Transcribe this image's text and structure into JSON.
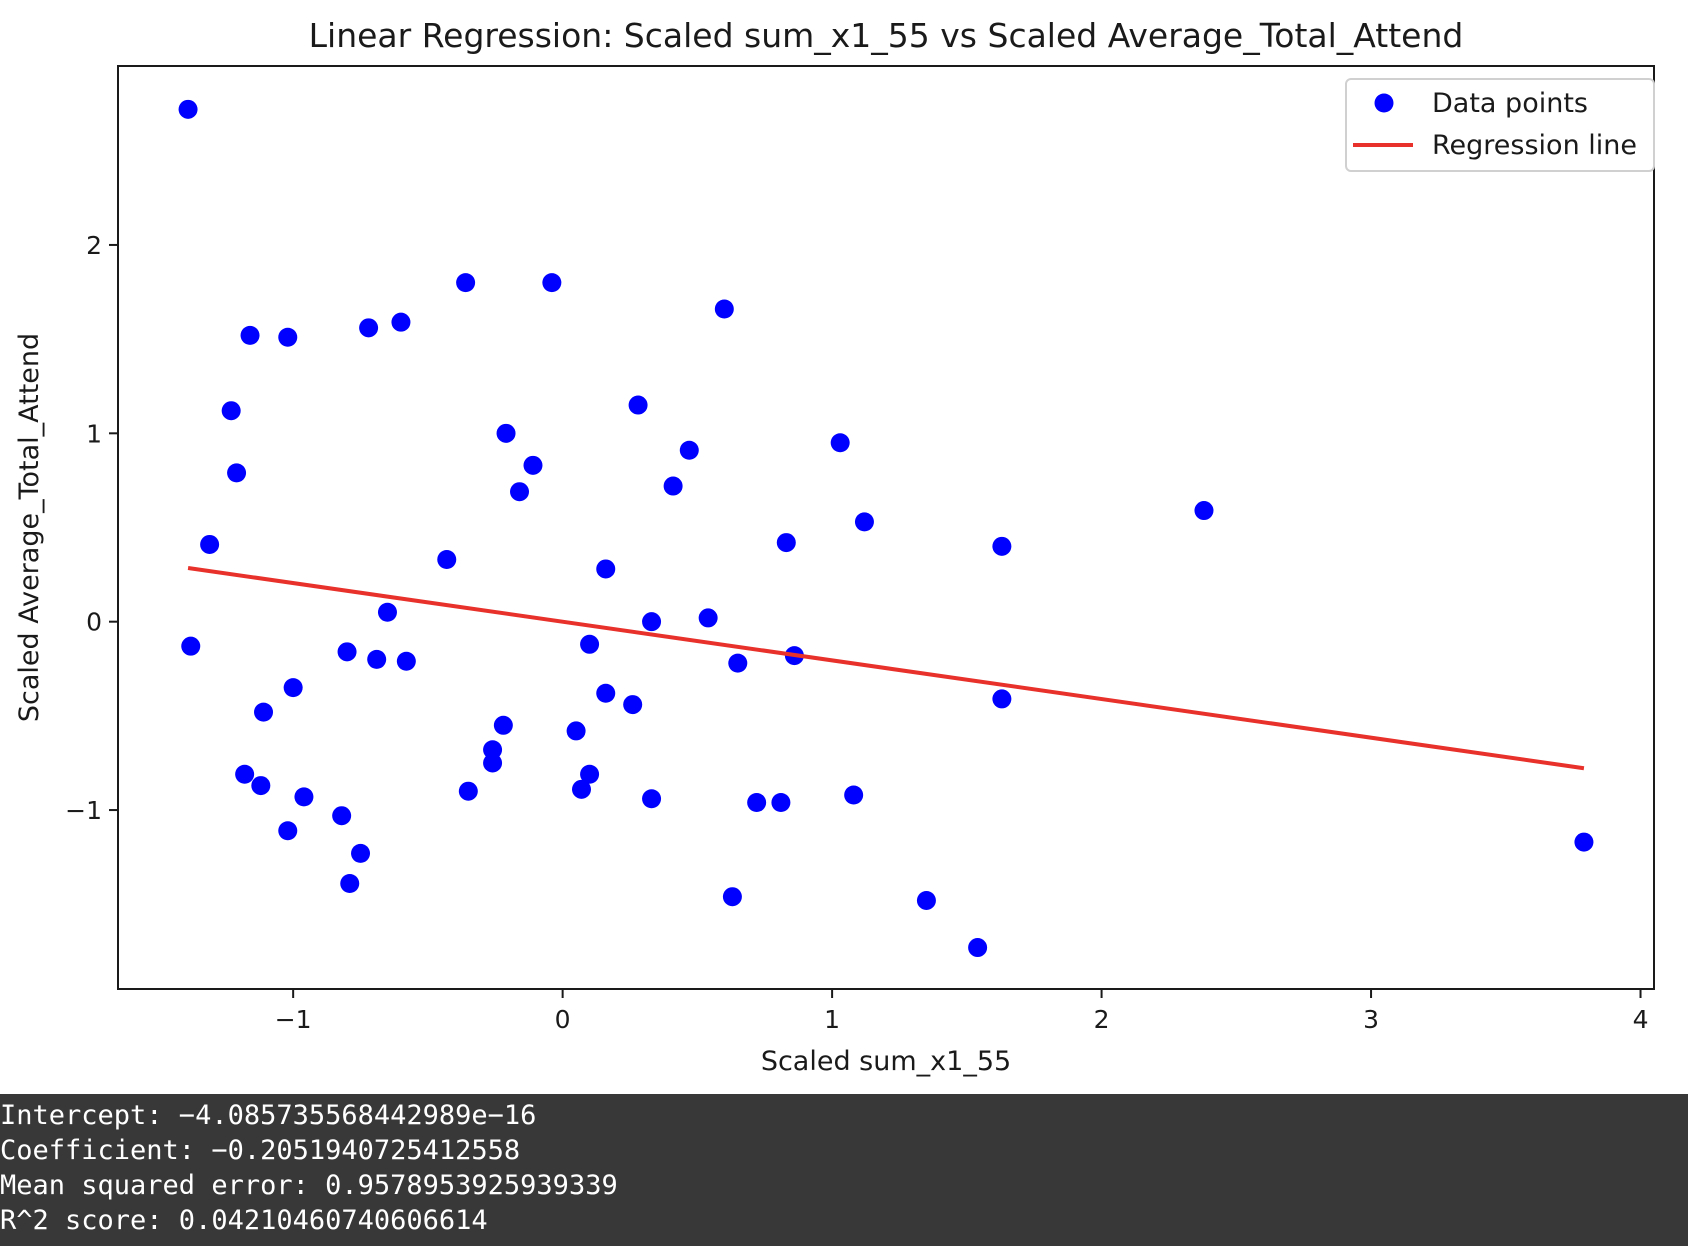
{
  "chart_data": {
    "type": "scatter",
    "title": "Linear Regression: Scaled sum_x1_55 vs Scaled Average_Total_Attend",
    "xlabel": "Scaled sum_x1_55",
    "ylabel": "Scaled Average_Total_Attend",
    "xlim": [
      -1.65,
      4.05
    ],
    "ylim": [
      -1.95,
      2.95
    ],
    "xticks": [
      -1,
      0,
      1,
      2,
      3,
      4
    ],
    "xtick_labels": [
      "−1",
      "0",
      "1",
      "2",
      "3",
      "4"
    ],
    "yticks": [
      -1,
      0,
      1,
      2
    ],
    "ytick_labels": [
      "−1",
      "0",
      "1",
      "2"
    ],
    "grid": false,
    "legend_position": "top-right",
    "series": [
      {
        "name": "Data points",
        "kind": "scatter",
        "color": "#0000ff",
        "points": [
          [
            -1.39,
            2.72
          ],
          [
            -1.38,
            -0.13
          ],
          [
            -1.31,
            0.41
          ],
          [
            -1.23,
            1.12
          ],
          [
            -1.21,
            0.79
          ],
          [
            -1.18,
            -0.81
          ],
          [
            -1.16,
            1.52
          ],
          [
            -1.12,
            -0.87
          ],
          [
            -1.11,
            -0.48
          ],
          [
            -1.02,
            1.51
          ],
          [
            -1.02,
            -1.11
          ],
          [
            -1.0,
            -0.35
          ],
          [
            -0.96,
            -0.93
          ],
          [
            -0.82,
            -1.03
          ],
          [
            -0.8,
            -0.16
          ],
          [
            -0.79,
            -1.39
          ],
          [
            -0.75,
            -1.23
          ],
          [
            -0.72,
            1.56
          ],
          [
            -0.69,
            -0.2
          ],
          [
            -0.65,
            0.05
          ],
          [
            -0.6,
            1.59
          ],
          [
            -0.58,
            -0.21
          ],
          [
            -0.43,
            0.33
          ],
          [
            -0.36,
            1.8
          ],
          [
            -0.35,
            -0.9
          ],
          [
            -0.26,
            -0.75
          ],
          [
            -0.26,
            -0.68
          ],
          [
            -0.22,
            -0.55
          ],
          [
            -0.21,
            1.0
          ],
          [
            -0.16,
            0.69
          ],
          [
            -0.11,
            0.83
          ],
          [
            -0.04,
            1.8
          ],
          [
            0.05,
            -0.58
          ],
          [
            0.07,
            -0.89
          ],
          [
            0.1,
            -0.12
          ],
          [
            0.1,
            -0.81
          ],
          [
            0.16,
            0.28
          ],
          [
            0.16,
            -0.38
          ],
          [
            0.26,
            -0.44
          ],
          [
            0.28,
            1.15
          ],
          [
            0.33,
            -0.94
          ],
          [
            0.33,
            0.0
          ],
          [
            0.41,
            0.72
          ],
          [
            0.47,
            0.91
          ],
          [
            0.54,
            0.02
          ],
          [
            0.6,
            1.66
          ],
          [
            0.63,
            -1.46
          ],
          [
            0.65,
            -0.22
          ],
          [
            0.72,
            -0.96
          ],
          [
            0.81,
            -0.96
          ],
          [
            0.83,
            0.42
          ],
          [
            0.86,
            -0.18
          ],
          [
            1.03,
            0.95
          ],
          [
            1.08,
            -0.92
          ],
          [
            1.12,
            0.53
          ],
          [
            1.35,
            -1.48
          ],
          [
            1.54,
            -1.73
          ],
          [
            1.63,
            0.4
          ],
          [
            1.63,
            -0.41
          ],
          [
            2.38,
            0.59
          ],
          [
            3.79,
            -1.17
          ]
        ]
      },
      {
        "name": "Regression line",
        "kind": "line",
        "color": "#e8312a",
        "points": [
          [
            -1.39,
            0.285
          ],
          [
            3.79,
            -0.778
          ]
        ]
      }
    ]
  },
  "output": {
    "lines": [
      "Intercept: −4.085735568442989e−16",
      "Coefficient: −0.2051940725412558",
      "Mean squared error: 0.9578953925939339",
      "R^2 score: 0.04210460740606614"
    ]
  }
}
